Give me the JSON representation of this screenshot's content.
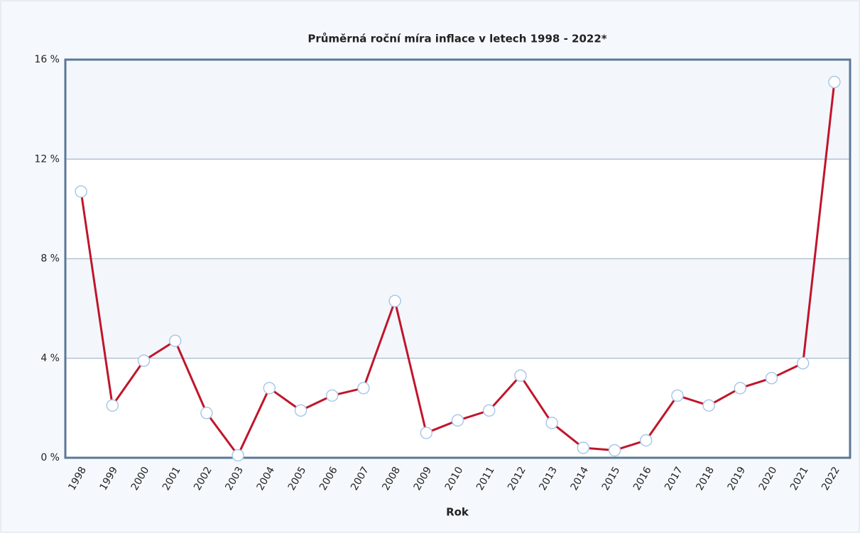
{
  "chart_data": {
    "type": "line",
    "title": "Průměrná roční míra inflace v letech 1998 - 2022*",
    "x_label": "Rok",
    "categories": [
      "1998",
      "1999",
      "2000",
      "2001",
      "2002",
      "2003",
      "2004",
      "2005",
      "2006",
      "2007",
      "2008",
      "2009",
      "2010",
      "2011",
      "2012",
      "2013",
      "2014",
      "2015",
      "2016",
      "2017",
      "2018",
      "2019",
      "2020",
      "2021",
      "2022"
    ],
    "series": [
      {
        "name": "Inflace",
        "color": "#c0152a",
        "values": [
          10.7,
          2.1,
          3.9,
          4.7,
          1.8,
          0.1,
          2.8,
          1.9,
          2.5,
          2.8,
          6.3,
          1.0,
          1.5,
          1.9,
          3.3,
          1.4,
          0.4,
          0.3,
          0.7,
          2.5,
          2.1,
          2.8,
          3.2,
          3.8,
          15.1
        ]
      }
    ],
    "ylim": [
      0,
      16
    ],
    "yticks": [
      {
        "value": 0,
        "label": "0 %"
      },
      {
        "value": 4,
        "label": "4 %"
      },
      {
        "value": 8,
        "label": "8 %"
      },
      {
        "value": 12,
        "label": "12 %"
      },
      {
        "value": 16,
        "label": "16 %"
      }
    ],
    "grid": true
  }
}
